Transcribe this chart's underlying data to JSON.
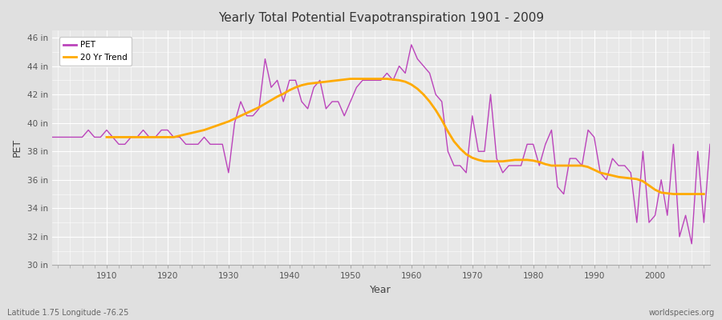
{
  "title": "Yearly Total Potential Evapotranspiration 1901 - 2009",
  "xlabel": "Year",
  "ylabel": "PET",
  "footnote_left": "Latitude 1.75 Longitude -76.25",
  "footnote_right": "worldspecies.org",
  "pet_color": "#bb44bb",
  "trend_color": "#ffaa00",
  "fig_bg_color": "#e0e0e0",
  "plot_bg_color": "#e8e8e8",
  "ylim": [
    30,
    46.5
  ],
  "xlim": [
    1901,
    2009
  ],
  "ytick_labels": [
    "30 in",
    "32 in",
    "34 in",
    "36 in",
    "38 in",
    "40 in",
    "42 in",
    "44 in",
    "46 in"
  ],
  "ytick_values": [
    30,
    32,
    34,
    36,
    38,
    40,
    42,
    44,
    46
  ],
  "years": [
    1901,
    1902,
    1903,
    1904,
    1905,
    1906,
    1907,
    1908,
    1909,
    1910,
    1911,
    1912,
    1913,
    1914,
    1915,
    1916,
    1917,
    1918,
    1919,
    1920,
    1921,
    1922,
    1923,
    1924,
    1925,
    1926,
    1927,
    1928,
    1929,
    1930,
    1931,
    1932,
    1933,
    1934,
    1935,
    1936,
    1937,
    1938,
    1939,
    1940,
    1941,
    1942,
    1943,
    1944,
    1945,
    1946,
    1947,
    1948,
    1949,
    1950,
    1951,
    1952,
    1953,
    1954,
    1955,
    1956,
    1957,
    1958,
    1959,
    1960,
    1961,
    1962,
    1963,
    1964,
    1965,
    1966,
    1967,
    1968,
    1969,
    1970,
    1971,
    1972,
    1973,
    1974,
    1975,
    1976,
    1977,
    1978,
    1979,
    1980,
    1981,
    1982,
    1983,
    1984,
    1985,
    1986,
    1987,
    1988,
    1989,
    1990,
    1991,
    1992,
    1993,
    1994,
    1995,
    1996,
    1997,
    1998,
    1999,
    2000,
    2001,
    2002,
    2003,
    2004,
    2005,
    2006,
    2007,
    2008,
    2009
  ],
  "pet_values": [
    39.0,
    39.0,
    39.0,
    39.0,
    39.0,
    39.0,
    39.5,
    39.0,
    39.0,
    39.5,
    39.0,
    38.5,
    38.5,
    39.0,
    39.0,
    39.5,
    39.0,
    39.0,
    39.5,
    39.5,
    39.0,
    39.0,
    38.5,
    38.5,
    38.5,
    39.0,
    38.5,
    38.5,
    38.5,
    36.5,
    40.0,
    41.5,
    40.5,
    40.5,
    41.0,
    44.5,
    42.5,
    43.0,
    41.5,
    43.0,
    43.0,
    41.5,
    41.0,
    42.5,
    43.0,
    41.0,
    41.5,
    41.5,
    40.5,
    41.5,
    42.5,
    43.0,
    43.0,
    43.0,
    43.0,
    43.5,
    43.0,
    44.0,
    43.5,
    45.5,
    44.5,
    44.0,
    43.5,
    42.0,
    41.5,
    38.0,
    37.0,
    37.0,
    36.5,
    40.5,
    38.0,
    38.0,
    42.0,
    37.5,
    36.5,
    37.0,
    37.0,
    37.0,
    38.5,
    38.5,
    37.0,
    38.5,
    39.5,
    35.5,
    35.0,
    37.5,
    37.5,
    37.0,
    39.5,
    39.0,
    36.5,
    36.0,
    37.5,
    37.0,
    37.0,
    36.5,
    33.0,
    38.0,
    33.0,
    33.5,
    36.0,
    33.5,
    38.5,
    32.0,
    33.5,
    31.5,
    38.0,
    33.0,
    38.5
  ],
  "trend_years": [
    1910,
    1911,
    1912,
    1913,
    1914,
    1915,
    1916,
    1917,
    1918,
    1919,
    1920,
    1921,
    1922,
    1923,
    1924,
    1925,
    1926,
    1927,
    1928,
    1929,
    1930,
    1931,
    1932,
    1933,
    1934,
    1935,
    1936,
    1937,
    1938,
    1939,
    1940,
    1941,
    1942,
    1943,
    1944,
    1945,
    1946,
    1947,
    1948,
    1949,
    1950,
    1951,
    1952,
    1953,
    1954,
    1955,
    1956,
    1957,
    1958,
    1959,
    1960,
    1961,
    1962,
    1963,
    1964,
    1965,
    1966,
    1967,
    1968,
    1969,
    1970,
    1971,
    1972,
    1973,
    1974,
    1975,
    1976,
    1977,
    1978,
    1979,
    1980,
    1981,
    1982,
    1983,
    1984,
    1985,
    1986,
    1987,
    1988,
    1989,
    1990,
    1991,
    1992,
    1993,
    1994,
    1995,
    1996,
    1997,
    1998,
    1999,
    2000,
    2001,
    2002,
    2003,
    2004,
    2005,
    2006,
    2007,
    2008
  ],
  "trend_values": [
    39.0,
    39.0,
    39.0,
    39.0,
    39.0,
    39.0,
    39.0,
    39.0,
    39.0,
    39.0,
    39.0,
    39.0,
    39.1,
    39.2,
    39.3,
    39.4,
    39.5,
    39.65,
    39.8,
    39.95,
    40.1,
    40.3,
    40.5,
    40.7,
    40.9,
    41.1,
    41.35,
    41.6,
    41.85,
    42.05,
    42.3,
    42.5,
    42.65,
    42.75,
    42.8,
    42.85,
    42.9,
    42.95,
    43.0,
    43.05,
    43.1,
    43.1,
    43.1,
    43.1,
    43.1,
    43.1,
    43.1,
    43.05,
    43.0,
    42.9,
    42.7,
    42.4,
    42.0,
    41.5,
    40.9,
    40.2,
    39.4,
    38.7,
    38.2,
    37.8,
    37.55,
    37.4,
    37.3,
    37.3,
    37.3,
    37.3,
    37.35,
    37.4,
    37.4,
    37.4,
    37.35,
    37.25,
    37.1,
    37.0,
    37.0,
    37.0,
    37.0,
    37.0,
    37.0,
    36.9,
    36.7,
    36.5,
    36.4,
    36.3,
    36.2,
    36.15,
    36.1,
    36.05,
    35.9,
    35.6,
    35.3,
    35.1,
    35.05,
    35.0,
    35.0,
    35.0,
    35.0,
    35.0,
    35.0
  ]
}
